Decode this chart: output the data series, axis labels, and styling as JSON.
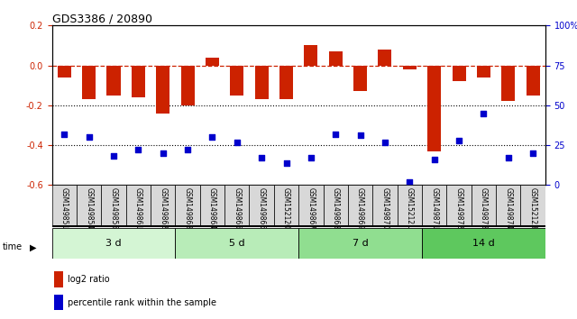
{
  "title": "GDS3386 / 20890",
  "samples": [
    "GSM149851",
    "GSM149854",
    "GSM149855",
    "GSM149861",
    "GSM149862",
    "GSM149863",
    "GSM149864",
    "GSM149865",
    "GSM149866",
    "GSM152120",
    "GSM149867",
    "GSM149868",
    "GSM149869",
    "GSM149870",
    "GSM152121",
    "GSM149871",
    "GSM149872",
    "GSM149873",
    "GSM149874",
    "GSM152123"
  ],
  "log2_ratio": [
    -0.06,
    -0.17,
    -0.15,
    -0.16,
    -0.24,
    -0.2,
    0.04,
    -0.15,
    -0.17,
    -0.17,
    0.1,
    0.07,
    -0.13,
    0.08,
    -0.02,
    -0.43,
    -0.08,
    -0.06,
    -0.18,
    -0.15
  ],
  "percentile_rank": [
    32,
    30,
    18,
    22,
    20,
    22,
    30,
    27,
    17,
    14,
    17,
    32,
    31,
    27,
    2,
    16,
    28,
    45,
    17,
    20
  ],
  "groups": [
    {
      "label": "3 d",
      "start": 0,
      "end": 5,
      "color": "#d4f5d4"
    },
    {
      "label": "5 d",
      "start": 5,
      "end": 10,
      "color": "#b8ecb8"
    },
    {
      "label": "7 d",
      "start": 10,
      "end": 15,
      "color": "#90de90"
    },
    {
      "label": "14 d",
      "start": 15,
      "end": 20,
      "color": "#5ec85e"
    }
  ],
  "bar_color": "#cc2200",
  "dot_color": "#0000cc",
  "ylim_left": [
    -0.6,
    0.2
  ],
  "ylim_right": [
    0,
    100
  ],
  "yticks_left": [
    -0.6,
    -0.4,
    -0.2,
    0.0,
    0.2
  ],
  "yticks_right": [
    0,
    25,
    50,
    75,
    100
  ],
  "background_color": "#ffffff",
  "hline_zero_color": "#cc2200",
  "hline_dotted_color": "#000000",
  "legend_items": [
    "log2 ratio",
    "percentile rank within the sample"
  ]
}
